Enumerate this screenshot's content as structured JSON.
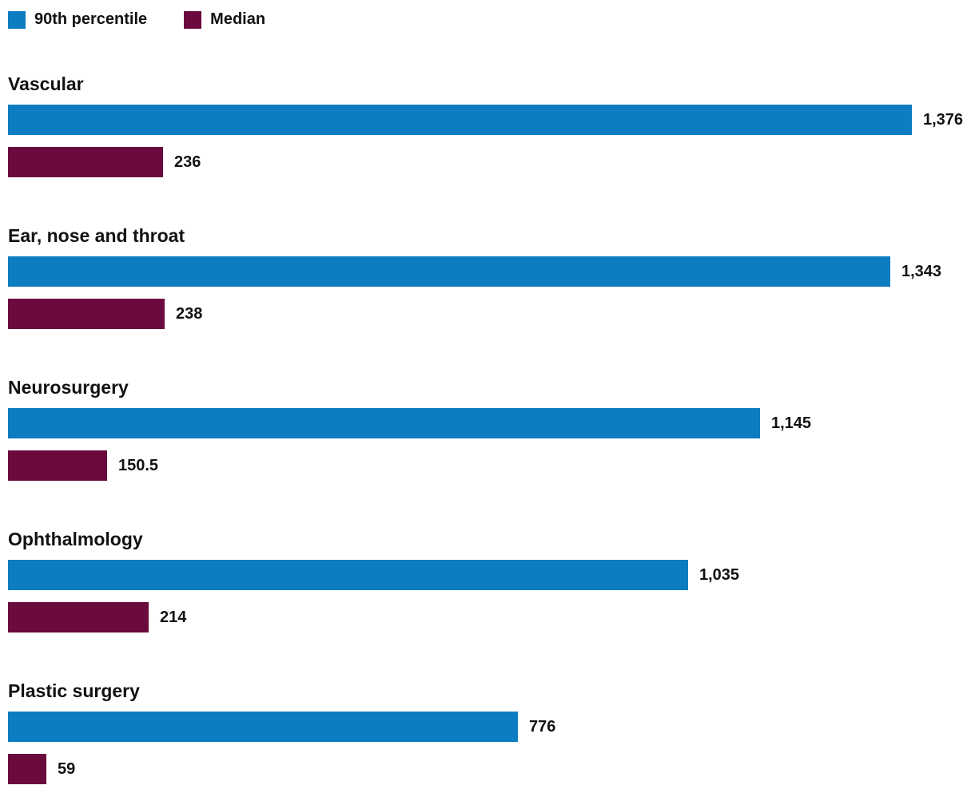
{
  "colors": {
    "p90": "#0d7cc0",
    "median": "#6a0a3d",
    "text": "#121212"
  },
  "legend": {
    "items": [
      {
        "key": "p90",
        "label": "90th percentile"
      },
      {
        "key": "median",
        "label": "Median"
      }
    ]
  },
  "chart_data": {
    "type": "bar",
    "orientation": "horizontal",
    "title": "",
    "xlabel": "",
    "ylabel": "",
    "legend_position": "top",
    "grid": false,
    "value_labels": "end-of-bar",
    "xmax": 1376,
    "categories": [
      "Vascular",
      "Ear, nose and throat",
      "Neurosurgery",
      "Ophthalmology",
      "Plastic surgery"
    ],
    "series": [
      {
        "name": "90th percentile",
        "color_key": "p90",
        "values": [
          1376,
          1343,
          1145,
          1035,
          776
        ],
        "labels": [
          "1,376",
          "1,343",
          "1,145",
          "1,035",
          "776"
        ]
      },
      {
        "name": "Median",
        "color_key": "median",
        "values": [
          236,
          238,
          150.5,
          214,
          59
        ],
        "labels": [
          "236",
          "238",
          "150.5",
          "214",
          "59"
        ]
      }
    ]
  }
}
